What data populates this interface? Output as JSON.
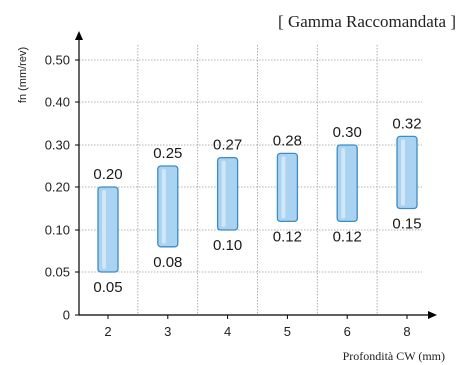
{
  "chart_data": {
    "type": "bar",
    "title": "[ Gamma Raccomandata ]",
    "xlabel": "Profondità CW (mm)",
    "ylabel": "fn (mm/rev)",
    "categories": [
      "2",
      "3",
      "4",
      "5",
      "6",
      "8"
    ],
    "y_ticks": [
      "0",
      "0.05",
      "0.10",
      "0.20",
      "0.30",
      "0.40",
      "0.50"
    ],
    "series": [
      {
        "low": [
          0.05,
          0.08,
          0.1,
          0.12,
          0.12,
          0.15
        ],
        "high": [
          0.2,
          0.25,
          0.27,
          0.28,
          0.3,
          0.32
        ],
        "low_labels": [
          "0.05",
          "0.08",
          "0.10",
          "0.12",
          "0.12",
          "0.15"
        ],
        "high_labels": [
          "0.20",
          "0.25",
          "0.27",
          "0.28",
          "0.30",
          "0.32"
        ]
      }
    ],
    "grid": true,
    "colors": {
      "bar_fill": "#a9d3f0",
      "bar_stroke": "#3d8cc4",
      "grid": "#9a9a9a",
      "axis": "#000000"
    }
  }
}
